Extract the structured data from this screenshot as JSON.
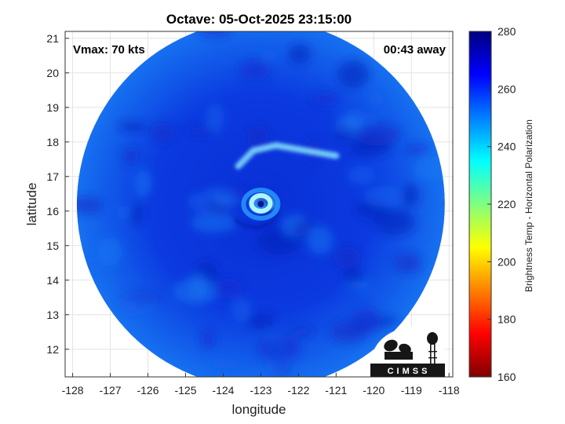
{
  "chart_data": {
    "type": "heatmap",
    "title": "Octave: 05-Oct-2025 23:15:00",
    "xlabel": "longitude",
    "ylabel": "latitude",
    "xlim": [
      -128.2,
      -117.9
    ],
    "ylim": [
      11.2,
      21.2
    ],
    "xticks": [
      -128,
      -127,
      -126,
      -125,
      -124,
      -123,
      -122,
      -121,
      -120,
      -119,
      -118
    ],
    "yticks": [
      12,
      13,
      14,
      15,
      16,
      17,
      18,
      19,
      20,
      21
    ],
    "grid": true,
    "colorbar": {
      "label": "Brightness Temp - Horizontal Polarization",
      "min": 160,
      "max": 280,
      "ticks": [
        160,
        180,
        200,
        220,
        240,
        260,
        280
      ],
      "colormap": "jet"
    },
    "annotations": {
      "vmax": "Vmax: 70 kts",
      "time_offset": "00:43 away"
    },
    "storm_center": {
      "lon": -123.0,
      "lat": 16.2
    },
    "swath": {
      "center_lon": -123.0,
      "center_lat": 16.2,
      "radius_deg": 5.1
    },
    "logo_text": "CIMSS"
  }
}
